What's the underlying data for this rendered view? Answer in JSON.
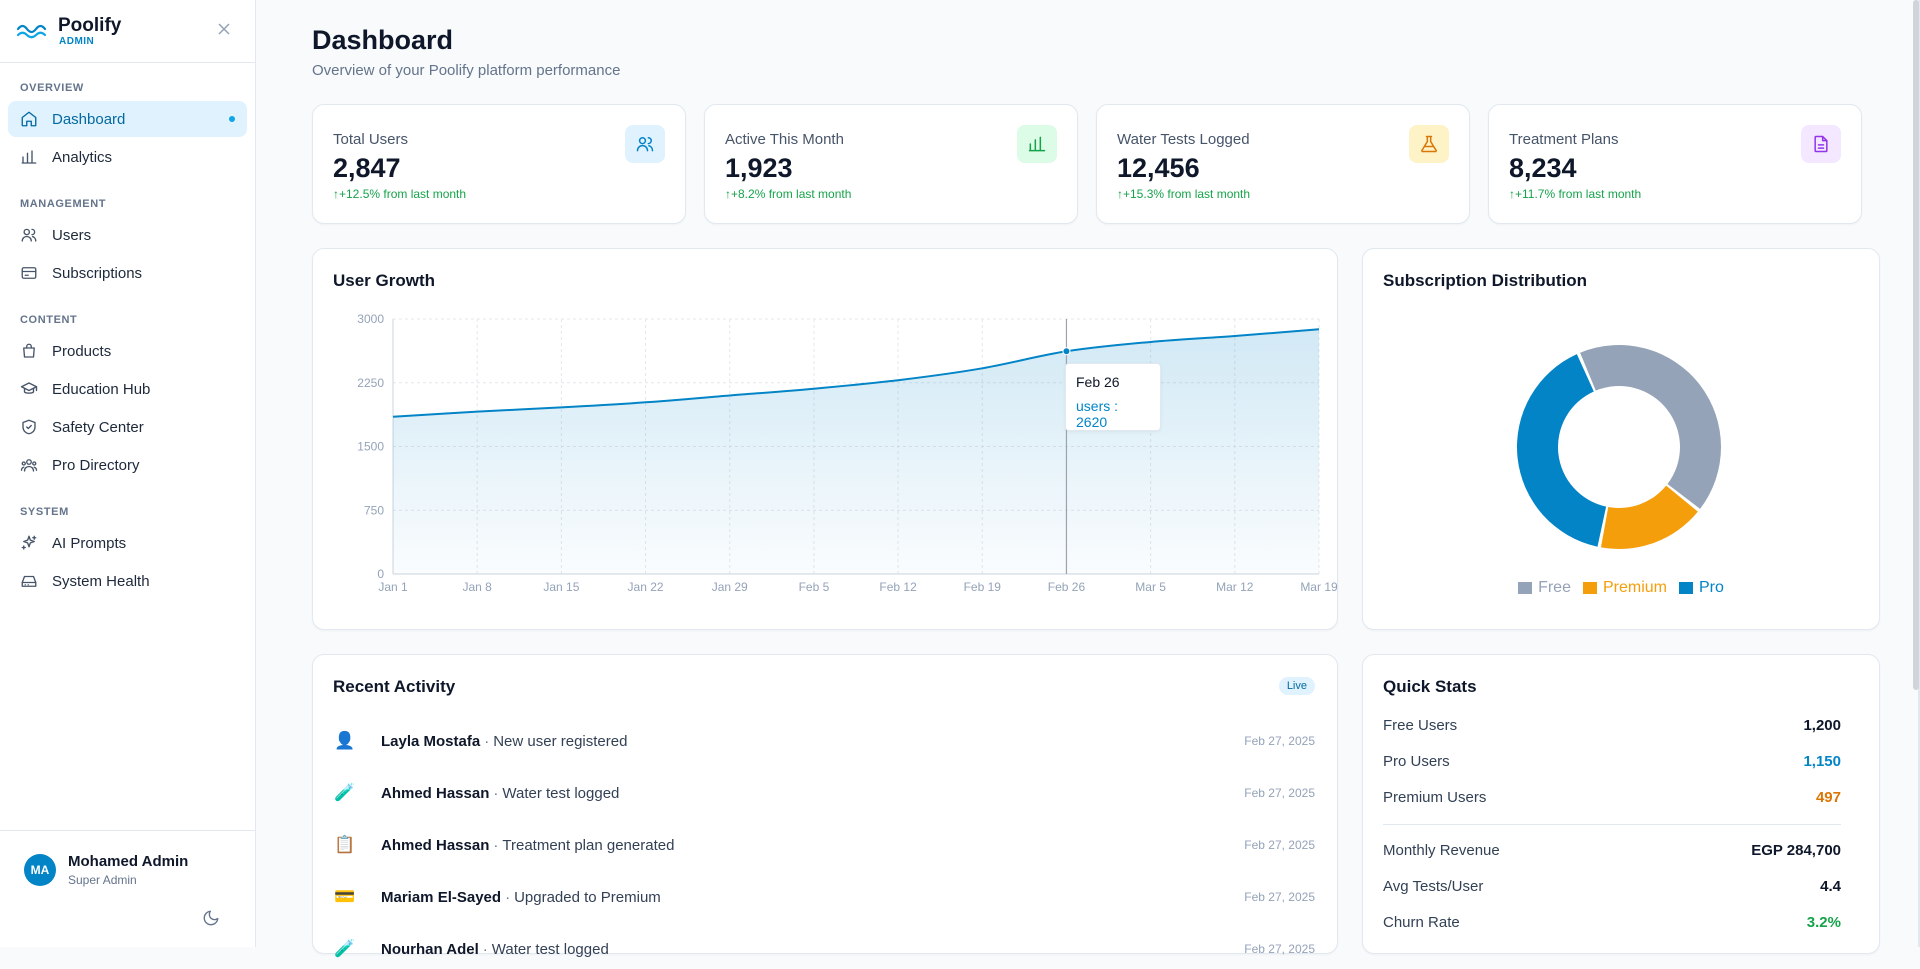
{
  "brand": {
    "name": "Poolify",
    "sub": "ADMIN"
  },
  "sidebar": {
    "sections": [
      {
        "title": "OVERVIEW",
        "items": [
          {
            "label": "Dashboard",
            "icon": "home-icon",
            "active": true
          },
          {
            "label": "Analytics",
            "icon": "bar-chart-icon"
          }
        ]
      },
      {
        "title": "MANAGEMENT",
        "items": [
          {
            "label": "Users",
            "icon": "users-icon"
          },
          {
            "label": "Subscriptions",
            "icon": "credit-card-icon"
          }
        ]
      },
      {
        "title": "CONTENT",
        "items": [
          {
            "label": "Products",
            "icon": "shopping-bag-icon"
          },
          {
            "label": "Education Hub",
            "icon": "graduation-cap-icon"
          },
          {
            "label": "Safety Center",
            "icon": "shield-check-icon"
          },
          {
            "label": "Pro Directory",
            "icon": "users-round-icon"
          }
        ]
      },
      {
        "title": "SYSTEM",
        "items": [
          {
            "label": "AI Prompts",
            "icon": "sparkles-icon"
          },
          {
            "label": "System Health",
            "icon": "hard-drive-icon"
          }
        ]
      }
    ]
  },
  "user": {
    "initials": "MA",
    "name": "Mohamed Admin",
    "role": "Super Admin"
  },
  "page": {
    "title": "Dashboard",
    "subtitle": "Overview of your Poolify platform performance"
  },
  "stats": [
    {
      "label": "Total Users",
      "value": "2,847",
      "change": "+12.5% from last month",
      "icon": "users-icon",
      "bg": "#e0f2fe",
      "fg": "#0284c7"
    },
    {
      "label": "Active This Month",
      "value": "1,923",
      "change": "+8.2% from last month",
      "icon": "bar-chart-icon",
      "bg": "#dcfce7",
      "fg": "#16a34a"
    },
    {
      "label": "Water Tests Logged",
      "value": "12,456",
      "change": "+15.3% from last month",
      "icon": "flask-icon",
      "bg": "#fef3c7",
      "fg": "#d97706"
    },
    {
      "label": "Treatment Plans",
      "value": "8,234",
      "change": "+11.7% from last month",
      "icon": "file-text-icon",
      "bg": "#f3e8ff",
      "fg": "#9333ea"
    }
  ],
  "growth": {
    "title": "User Growth",
    "tooltip": {
      "label": "Feb 26",
      "series": "users",
      "value": "2620"
    }
  },
  "distribution": {
    "title": "Subscription Distribution"
  },
  "chart_data": [
    {
      "type": "area",
      "x": [
        "Jan 1",
        "Jan 8",
        "Jan 15",
        "Jan 22",
        "Jan 29",
        "Feb 5",
        "Feb 12",
        "Feb 19",
        "Feb 26",
        "Mar 5",
        "Mar 12",
        "Mar 19"
      ],
      "series": [
        {
          "name": "users",
          "values": [
            1850,
            1910,
            1960,
            2020,
            2100,
            2180,
            2280,
            2420,
            2620,
            2730,
            2800,
            2880
          ]
        }
      ],
      "yticks": [
        0,
        750,
        1500,
        2250,
        3000
      ],
      "ylim": [
        0,
        3000
      ],
      "color": "#0284c7",
      "grid": true,
      "highlight_index": 8
    },
    {
      "type": "pie",
      "donut": true,
      "categories": [
        "Free",
        "Premium",
        "Pro"
      ],
      "values": [
        1200,
        497,
        1150
      ],
      "colors": [
        "#94a3b8",
        "#f59e0b",
        "#0284c7"
      ],
      "legend": "bottom"
    }
  ],
  "activity": {
    "title": "Recent Activity",
    "badge": "Live",
    "items": [
      {
        "icon": "👤",
        "icon_name": "user-avatar-icon",
        "name": "Layla Mostafa",
        "action": "New user registered",
        "date": "Feb 27, 2025"
      },
      {
        "icon": "🧪",
        "icon_name": "test-tube-icon",
        "name": "Ahmed Hassan",
        "action": "Water test logged",
        "date": "Feb 27, 2025"
      },
      {
        "icon": "📋",
        "icon_name": "clipboard-icon",
        "name": "Ahmed Hassan",
        "action": "Treatment plan generated",
        "date": "Feb 27, 2025"
      },
      {
        "icon": "💳",
        "icon_name": "credit-card-icon",
        "name": "Mariam El-Sayed",
        "action": "Upgraded to Premium",
        "date": "Feb 27, 2025"
      },
      {
        "icon": "🧪",
        "icon_name": "test-tube-icon",
        "name": "Nourhan Adel",
        "action": "Water test logged",
        "date": "Feb 27, 2025"
      }
    ]
  },
  "quick": {
    "title": "Quick Stats",
    "rows": [
      {
        "label": "Free Users",
        "value": "1,200",
        "color": "#0f172a"
      },
      {
        "label": "Pro Users",
        "value": "1,150",
        "color": "#0284c7"
      },
      {
        "label": "Premium Users",
        "value": "497",
        "color": "#d97706"
      },
      {
        "label": "Monthly Revenue",
        "value": "EGP 284,700",
        "color": "#0f172a"
      },
      {
        "label": "Avg Tests/User",
        "value": "4.4",
        "color": "#0f172a"
      },
      {
        "label": "Churn Rate",
        "value": "3.2%",
        "color": "#16a34a"
      }
    ]
  }
}
